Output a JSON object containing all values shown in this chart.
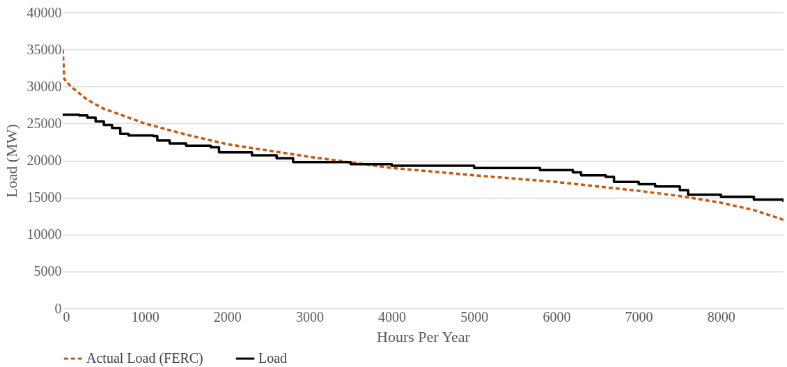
{
  "chart_data": {
    "type": "line",
    "xlabel": "Hours Per Year",
    "ylabel": "Load (MW)",
    "xlim": [
      0,
      8760
    ],
    "ylim": [
      0,
      40000
    ],
    "xticks": [
      0,
      1000,
      2000,
      3000,
      4000,
      5000,
      6000,
      7000,
      8000
    ],
    "yticks": [
      0,
      5000,
      10000,
      15000,
      20000,
      25000,
      30000,
      35000,
      40000
    ],
    "grid": "y",
    "legend": "bottom",
    "series": [
      {
        "name": "Actual Load (FERC)",
        "color": "#c55a11",
        "line_style": "dashed",
        "x": [
          0,
          20,
          100,
          300,
          500,
          1000,
          1500,
          2000,
          3000,
          4000,
          5000,
          6000,
          7000,
          7500,
          8000,
          8400,
          8760
        ],
        "values": [
          35000,
          31000,
          30000,
          28200,
          27000,
          25000,
          23500,
          22200,
          20500,
          19000,
          18000,
          17100,
          15900,
          15200,
          14300,
          13300,
          12000
        ]
      },
      {
        "name": "Load",
        "color": "#000000",
        "line_style": "solid",
        "type": "step",
        "x": [
          0,
          200,
          300,
          400,
          500,
          600,
          700,
          800,
          1100,
          1150,
          1300,
          1500,
          1800,
          1900,
          2300,
          2600,
          2800,
          3500,
          4000,
          5000,
          5800,
          6200,
          6300,
          6600,
          6700,
          7000,
          7200,
          7500,
          7600,
          8000,
          8400,
          8760
        ],
        "values": [
          26200,
          26100,
          25800,
          25300,
          24800,
          24400,
          23600,
          23400,
          23300,
          22700,
          22300,
          22000,
          21800,
          21100,
          20700,
          20300,
          19800,
          19500,
          19300,
          19000,
          18700,
          18400,
          18000,
          17800,
          17100,
          16800,
          16500,
          16000,
          15400,
          15100,
          14700,
          14400
        ]
      }
    ]
  }
}
